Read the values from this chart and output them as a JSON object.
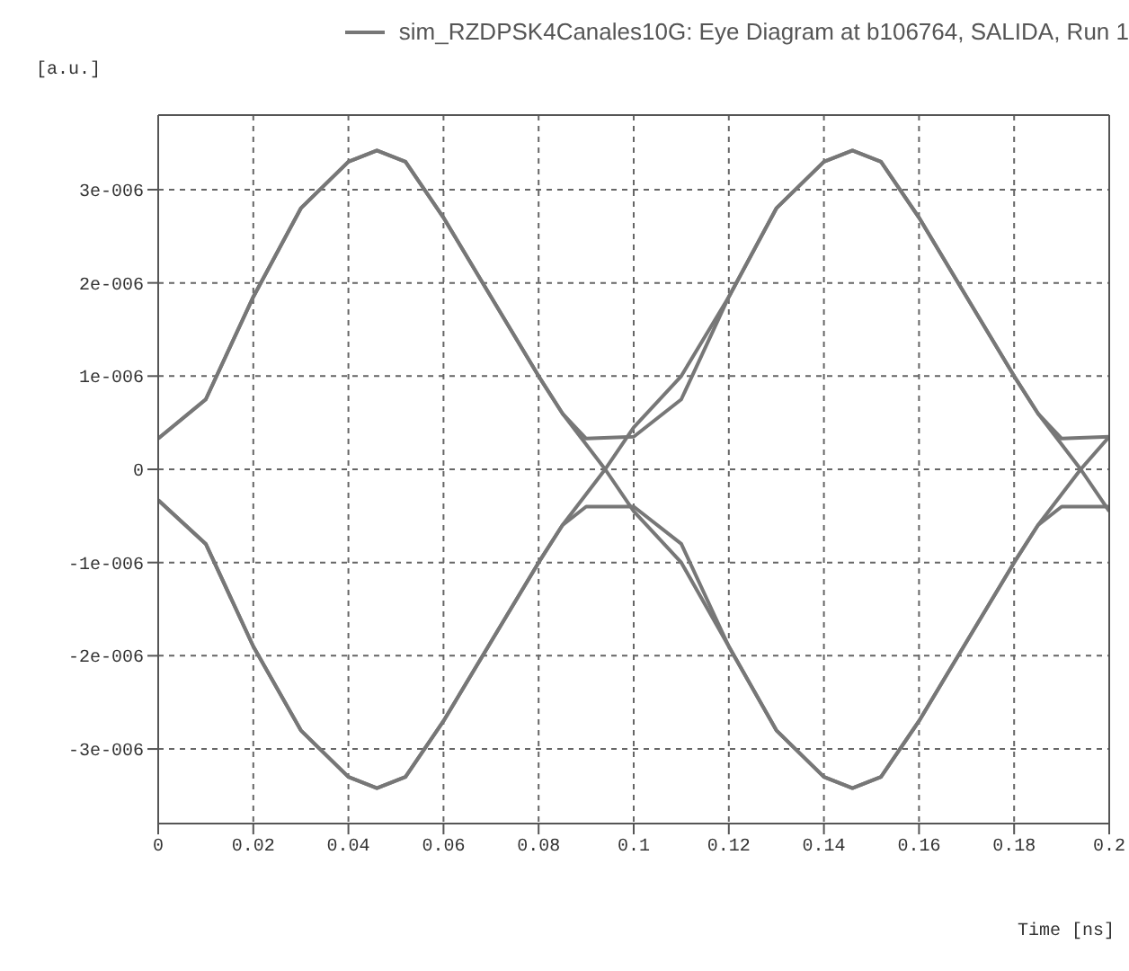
{
  "chart_data": {
    "type": "line",
    "xlabel": "Time [ns]",
    "ylabel": "[a.u.]",
    "xlim": [
      0,
      0.2
    ],
    "xticks": [
      0,
      0.02,
      0.04,
      0.06,
      0.08,
      0.1,
      0.12,
      0.14,
      0.16,
      0.18,
      0.2
    ],
    "ylim": [
      -3.8e-06,
      3.8e-06
    ],
    "yticks": [
      {
        "value": -3e-06,
        "label": "-3e-006"
      },
      {
        "value": -2e-06,
        "label": "-2e-006"
      },
      {
        "value": -1e-06,
        "label": "-1e-006"
      },
      0,
      {
        "value": 1e-06,
        "label": "1e-006"
      },
      {
        "value": 2e-06,
        "label": "2e-006"
      },
      {
        "value": 3e-06,
        "label": "3e-006"
      }
    ],
    "grid": true,
    "legend": "top right",
    "marker": "none",
    "line_style": "solid",
    "series": [
      {
        "name": "sim_RZDPSK4Canales10G: Eye Diagram at b106764, SALIDA, Run 1",
        "color": "#777777",
        "x": [
          0,
          0.01,
          0.02,
          0.03,
          0.04,
          0.046,
          0.052,
          0.06,
          0.07,
          0.08,
          0.085,
          0.09,
          0.1,
          0.11,
          0.12,
          0.13,
          0.14,
          0.146,
          0.152,
          0.16,
          0.17,
          0.18,
          0.185,
          0.19,
          0.2
        ],
        "values": [
          3.3e-07,
          7.5e-07,
          1.85e-06,
          2.8e-06,
          3.3e-06,
          3.42e-06,
          3.3e-06,
          2.7e-06,
          1.85e-06,
          1e-06,
          6e-07,
          3.3e-07,
          3.5e-07,
          7.5e-07,
          1.85e-06,
          2.8e-06,
          3.3e-06,
          3.42e-06,
          3.3e-06,
          2.7e-06,
          1.85e-06,
          1e-06,
          6e-07,
          3.3e-07,
          3.5e-07
        ]
      },
      {
        "color": "#777777",
        "x": [
          0,
          0.01,
          0.02,
          0.03,
          0.04,
          0.046,
          0.052,
          0.06,
          0.07,
          0.08,
          0.085,
          0.094,
          0.1,
          0.11,
          0.12,
          0.13,
          0.14,
          0.146,
          0.152,
          0.16,
          0.17,
          0.18,
          0.185,
          0.194,
          0.2
        ],
        "values": [
          3.3e-07,
          7.5e-07,
          1.85e-06,
          2.8e-06,
          3.3e-06,
          3.42e-06,
          3.3e-06,
          2.7e-06,
          1.85e-06,
          1e-06,
          6e-07,
          0,
          -4.5e-07,
          -1e-06,
          -1.9e-06,
          -2.8e-06,
          -3.3e-06,
          -3.42e-06,
          -3.3e-06,
          -2.7e-06,
          -1.85e-06,
          -1e-06,
          -6e-07,
          0,
          3.5e-07
        ]
      },
      {
        "color": "#777777",
        "x": [
          0,
          0.01,
          0.02,
          0.03,
          0.04,
          0.046,
          0.052,
          0.06,
          0.07,
          0.08,
          0.085,
          0.094,
          0.1,
          0.11,
          0.12,
          0.13,
          0.14,
          0.146,
          0.152,
          0.16,
          0.17,
          0.18,
          0.185,
          0.194,
          0.2
        ],
        "values": [
          -3.3e-07,
          -8e-07,
          -1.9e-06,
          -2.8e-06,
          -3.3e-06,
          -3.42e-06,
          -3.3e-06,
          -2.7e-06,
          -1.85e-06,
          -1e-06,
          -6e-07,
          0,
          4.5e-07,
          1e-06,
          1.85e-06,
          2.8e-06,
          3.3e-06,
          3.42e-06,
          3.3e-06,
          2.7e-06,
          1.85e-06,
          1e-06,
          6e-07,
          0,
          -4.5e-07
        ]
      },
      {
        "color": "#777777",
        "x": [
          0,
          0.01,
          0.02,
          0.03,
          0.04,
          0.046,
          0.052,
          0.06,
          0.07,
          0.08,
          0.085,
          0.09,
          0.1,
          0.11,
          0.12,
          0.13,
          0.14,
          0.146,
          0.152,
          0.16,
          0.17,
          0.18,
          0.185,
          0.19,
          0.2
        ],
        "values": [
          -3.3e-07,
          -8e-07,
          -1.9e-06,
          -2.8e-06,
          -3.3e-06,
          -3.42e-06,
          -3.3e-06,
          -2.7e-06,
          -1.85e-06,
          -1e-06,
          -6e-07,
          -4e-07,
          -4e-07,
          -8e-07,
          -1.9e-06,
          -2.8e-06,
          -3.3e-06,
          -3.42e-06,
          -3.3e-06,
          -2.7e-06,
          -1.85e-06,
          -1e-06,
          -6e-07,
          -4e-07,
          -4e-07
        ]
      }
    ]
  }
}
